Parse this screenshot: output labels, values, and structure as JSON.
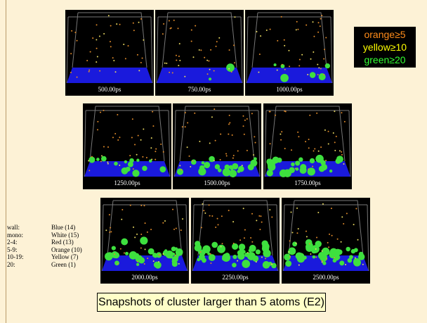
{
  "legend": [
    "orange≥5",
    "yellow≥10",
    "green≥20"
  ],
  "snapshots": [
    "500.00ps",
    "750.00ps",
    "1000.00ps",
    "1250.00ps",
    "1500.00ps",
    "1750.00ps",
    "2000.00ps",
    "2250.00ps",
    "2500.00ps"
  ],
  "key": [
    [
      "wall:",
      "Blue (14)"
    ],
    [
      "mono:",
      "White (15)"
    ],
    [
      "2-4:",
      "Red (13)"
    ],
    [
      "5-9:",
      "Orange (10)"
    ],
    [
      "10-19:",
      "Yellow (7)"
    ],
    [
      "20:",
      "Green (1)"
    ]
  ],
  "caption": "Snapshots of cluster larger than 5 atoms (E2)"
}
